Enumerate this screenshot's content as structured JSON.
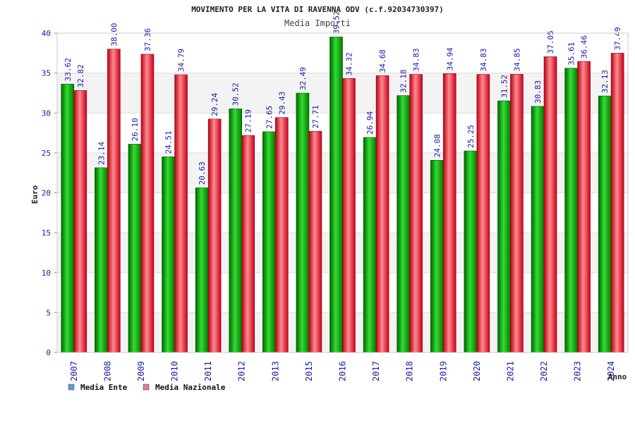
{
  "chart_data": {
    "type": "bar",
    "title": "MOVIMENTO PER LA VITA DI RAVENNA ODV (c.f.92034730397)",
    "subtitle": "Media Importi",
    "xlabel": "Anno",
    "ylabel": "Euro",
    "ylim": [
      0,
      40
    ],
    "yticks": [
      0,
      5,
      10,
      15,
      20,
      25,
      30,
      35,
      40
    ],
    "grid": true,
    "legend_position": "bottom-left",
    "categories": [
      "2007",
      "2008",
      "2009",
      "2010",
      "2011",
      "2012",
      "2013",
      "2015",
      "2016",
      "2017",
      "2018",
      "2019",
      "2020",
      "2021",
      "2022",
      "2023",
      "2024"
    ],
    "series": [
      {
        "name": "Media Ente",
        "legend_color": "#5b9bd5",
        "bar_color": "#13a813",
        "values": [
          33.62,
          23.14,
          26.1,
          24.51,
          20.63,
          30.52,
          27.65,
          32.49,
          39.52,
          26.94,
          32.18,
          24.08,
          25.25,
          31.52,
          30.83,
          35.61,
          32.13
        ],
        "labels": [
          "33.62",
          "23.14",
          "26.10",
          "24.51",
          "20.63",
          "30.52",
          "27.65",
          "32.49",
          "39.52",
          "26.94",
          "32.18",
          "24.08",
          "25.25",
          "31.52",
          "30.83",
          "35.61",
          "32.13"
        ]
      },
      {
        "name": "Media Nazionale",
        "legend_color": "#e07aa8",
        "bar_color": "#e8202a",
        "values": [
          32.82,
          38.0,
          37.36,
          34.79,
          29.24,
          27.19,
          29.43,
          27.71,
          34.32,
          34.68,
          34.83,
          34.94,
          34.83,
          34.85,
          37.05,
          36.46,
          37.49
        ],
        "labels": [
          "32.82",
          "38.00",
          "37.36",
          "34.79",
          "29.24",
          "27.19",
          "29.43",
          "27.71",
          "34.32",
          "34.68",
          "34.83",
          "34.94",
          "34.83",
          "34.85",
          "37.05",
          "36.46",
          "37.49"
        ]
      }
    ]
  }
}
